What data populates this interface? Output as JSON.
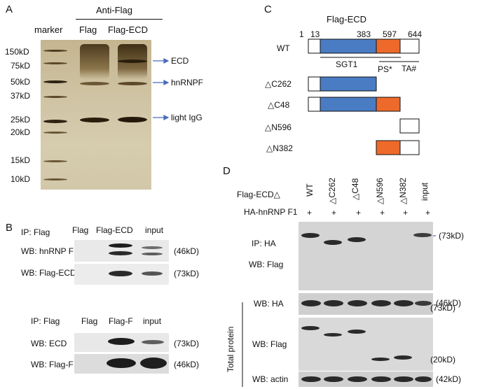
{
  "panelA": {
    "label": "A",
    "header": "Anti-Flag",
    "lanes": [
      "marker",
      "Flag",
      "Flag-ECD"
    ],
    "mw": [
      "150kD",
      "75kD",
      "50kD",
      "37kD",
      "25kD",
      "20kD",
      "15kD",
      "10kD"
    ],
    "arrows": [
      "ECD",
      "hnRNPF",
      "light IgG"
    ]
  },
  "panelB": {
    "label": "B",
    "top": {
      "ip": "IP: Flag",
      "lanes": [
        "Flag",
        "Flag-ECD",
        "input"
      ],
      "wb1": "WB: hnRNP F",
      "wb2": "WB: Flag-ECD",
      "kd1": "(46kD)",
      "kd2": "(73kD)"
    },
    "bottom": {
      "ip": "IP: Flag",
      "lanes": [
        "Flag",
        "Flag-F",
        "input"
      ],
      "wb1": "WB: ECD",
      "wb2": "WB: Flag-F",
      "kd1": "(73kD)",
      "kd2": "(46kD)"
    }
  },
  "panelC": {
    "label": "C",
    "title": "Flag-ECD",
    "positions": [
      "1",
      "13",
      "383",
      "597",
      "644"
    ],
    "constructs": [
      "WT",
      "△C262",
      "△C48",
      "△N596",
      "△N382"
    ],
    "domains": [
      "SGT1",
      "PS*",
      "TA#"
    ],
    "colors": {
      "sgt1": "#4a7cc4",
      "ps": "#ee6a2a"
    }
  },
  "panelD": {
    "label": "D",
    "row1_label": "Flag-ECD△",
    "row2_label": "HA-hnRNP F1",
    "lanes": [
      "WT",
      "△C262",
      "△C48",
      "△N596",
      "△N382",
      "input"
    ],
    "plus": "+",
    "ip_label": "IP: HA",
    "wb_flag": "WB: Flag",
    "wb_ha": "WB: HA",
    "total_protein": "Total protein",
    "wb_flag2": "WB: Flag",
    "wb_actin": "WB: actin",
    "kd_73": "(73kD)",
    "kd_46": "(46kD)",
    "kd_73b": "(73kD)",
    "kd_20": "(20kD)",
    "kd_42": "(42kD)"
  }
}
